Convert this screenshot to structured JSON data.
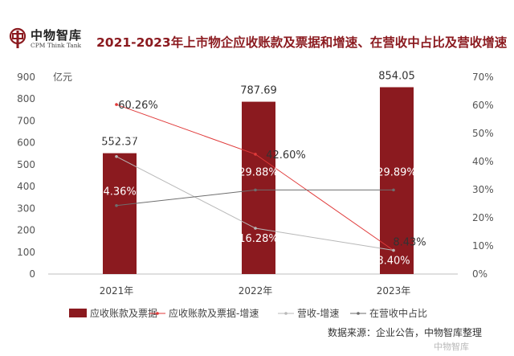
{
  "header": {
    "brand_cn": "中物智库",
    "brand_en": "CPM Think Tank",
    "title": "2021-2023年上市物企应收账款及票据和增速、在营收中占比及营收增速"
  },
  "chart_data": {
    "type": "bar",
    "categories": [
      "2021年",
      "2022年",
      "2023年"
    ],
    "y_unit": "亿元",
    "ylim": [
      0,
      900
    ],
    "y_ticks": [
      0,
      100,
      200,
      300,
      400,
      500,
      600,
      700,
      800,
      900
    ],
    "y2lim": [
      0,
      70
    ],
    "y2_ticks": [
      "0%",
      "10%",
      "20%",
      "30%",
      "40%",
      "50%",
      "60%",
      "70%"
    ],
    "grid": false,
    "legend_position": "bottom",
    "series": [
      {
        "name": "应收账款及票据",
        "type": "bar",
        "axis": "left",
        "color": "#8b1a1f",
        "values": [
          552.37,
          787.69,
          854.05
        ],
        "labels": [
          "552.37",
          "787.69",
          "854.05"
        ]
      },
      {
        "name": "应收账款及票据-增速",
        "type": "line",
        "axis": "right",
        "color": "#e03a3a",
        "values": [
          60.26,
          42.6,
          8.4
        ],
        "labels": [
          "60.26%",
          "42.60%",
          "8.40%"
        ]
      },
      {
        "name": "营收-增速",
        "type": "line",
        "axis": "right",
        "color": "#b8b8b8",
        "values": [
          41.77,
          16.28,
          8.43
        ],
        "labels": [
          "41.77%",
          "16.28%",
          "8.43%"
        ]
      },
      {
        "name": "在营收中占比",
        "type": "line",
        "axis": "right",
        "color": "#6e6e6e",
        "values": [
          24.36,
          29.88,
          29.89
        ],
        "labels": [
          "24.36%",
          "29.88%",
          "29.89%"
        ]
      }
    ]
  },
  "footer": {
    "source": "数据来源：企业公告，中物智库整理",
    "watermark": "中物智库"
  }
}
